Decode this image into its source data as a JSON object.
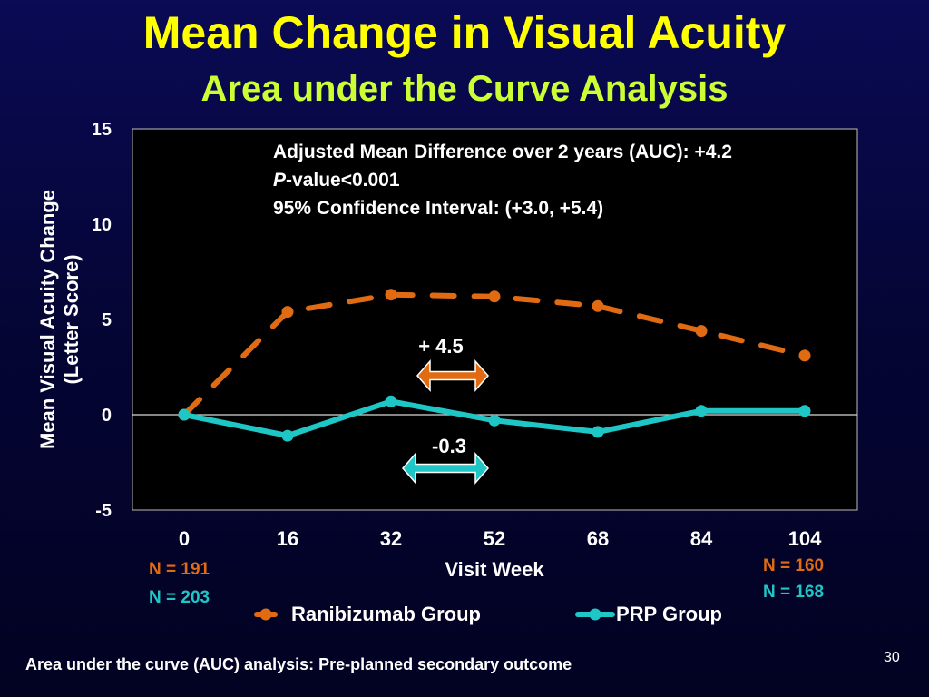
{
  "slide": {
    "title": "Mean Change in Visual Acuity",
    "subtitle": "Area under the Curve Analysis",
    "footnote": "Area under the curve (AUC) analysis: Pre-planned secondary outcome",
    "slide_number": "30"
  },
  "colors": {
    "title": "#ffff00",
    "subtitle": "#ccff33",
    "ranibizumab": "#e06b12",
    "prp": "#1fc6c6",
    "plot_background": "#000000",
    "text": "#ffffff"
  },
  "chart_data": {
    "type": "line",
    "xlabel": "Visit Week",
    "ylabel_lines": [
      "Mean Visual Acuity Change",
      "(Letter Score)"
    ],
    "x": [
      0,
      16,
      32,
      52,
      68,
      84,
      104
    ],
    "x_tick_labels": [
      "0",
      "16",
      "32",
      "52",
      "68",
      "84",
      "104"
    ],
    "y_ticks": [
      15,
      10,
      5,
      0,
      -5
    ],
    "y_tick_labels": [
      "15",
      "10",
      "5",
      "0",
      "-5"
    ],
    "ylim": [
      -5,
      15
    ],
    "series": [
      {
        "name": "Ranibizumab Group",
        "values": [
          0,
          5.4,
          6.3,
          6.2,
          5.7,
          4.4,
          3.1
        ],
        "style": "dashed"
      },
      {
        "name": "PRP Group",
        "values": [
          0,
          -1.1,
          0.7,
          -0.3,
          -0.9,
          0.2,
          0.2
        ],
        "style": "solid"
      }
    ],
    "annotation_lines": [
      {
        "text": "Adjusted Mean Difference over 2 years (AUC): +4.2"
      },
      {
        "prefix": "P",
        "text": "-value<0.001"
      },
      {
        "text": "95% Confidence Interval: (+3.0, +5.4)"
      }
    ],
    "ranibizumab_difference": "+ 4.5",
    "prp_difference": "-0.3",
    "n_labels": {
      "start_ranibizumab": "N = 191",
      "start_prp": "N = 203",
      "end_ranibizumab": "N = 160",
      "end_prp": "N = 168"
    },
    "legend_position": "bottom",
    "grid": false
  }
}
